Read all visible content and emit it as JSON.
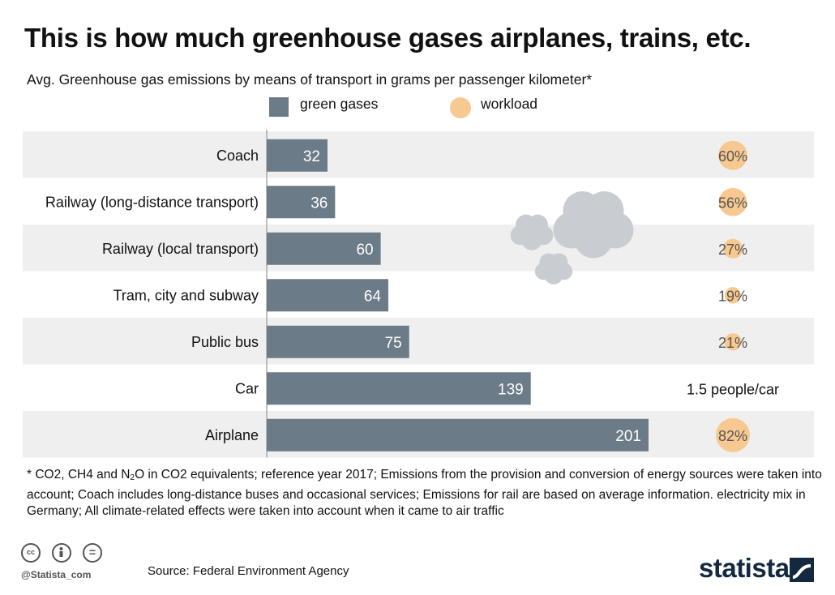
{
  "title": "This is how much greenhouse gases airplanes, trains, etc.",
  "subtitle": "Avg. Greenhouse gas emissions by means of transport in grams per passenger kilometer*",
  "legend": {
    "bar_label": "green gases",
    "dot_label": "workload"
  },
  "colors": {
    "bar": "#6c7b88",
    "dot": "#f7c991",
    "band": "#efefef",
    "cloud": "#c9cdd1",
    "brand": "#14293f"
  },
  "chart_data": {
    "type": "bar",
    "orientation": "horizontal",
    "categories": [
      "Coach",
      "Railway (long-distance transport)",
      "Railway (local transport)",
      "Tram, city and subway",
      "Public bus",
      "Car",
      "Airplane"
    ],
    "series": [
      {
        "name": "green gases",
        "values": [
          32,
          36,
          60,
          64,
          75,
          139,
          201
        ]
      },
      {
        "name": "workload",
        "values": [
          60,
          56,
          27,
          19,
          21,
          null,
          82
        ],
        "unit": "%"
      }
    ],
    "workload_labels": [
      "60%",
      "56%",
      "27%",
      "19%",
      "21%",
      "1.5 people/car",
      "82%"
    ],
    "xlim": [
      0,
      201
    ]
  },
  "footnote": {
    "part1": "* CO2, CH4 and N",
    "sub": "2",
    "part2": "O in CO2 equivalents; reference year 2017; Emissions from the provision and conversion of energy sources were taken into account; Coach includes long-distance buses and occasional services; Emissions for rail are based on average information. electricity mix in Germany; All climate-related effects were taken into account when it came to air traffic"
  },
  "cc_icons": [
    "cc-icon",
    "by-icon",
    "nd-icon"
  ],
  "cc_text": "cc",
  "nd_text": "=",
  "handle": "@Statista_com",
  "source": "Source: Federal Environment Agency",
  "brand": "statista"
}
